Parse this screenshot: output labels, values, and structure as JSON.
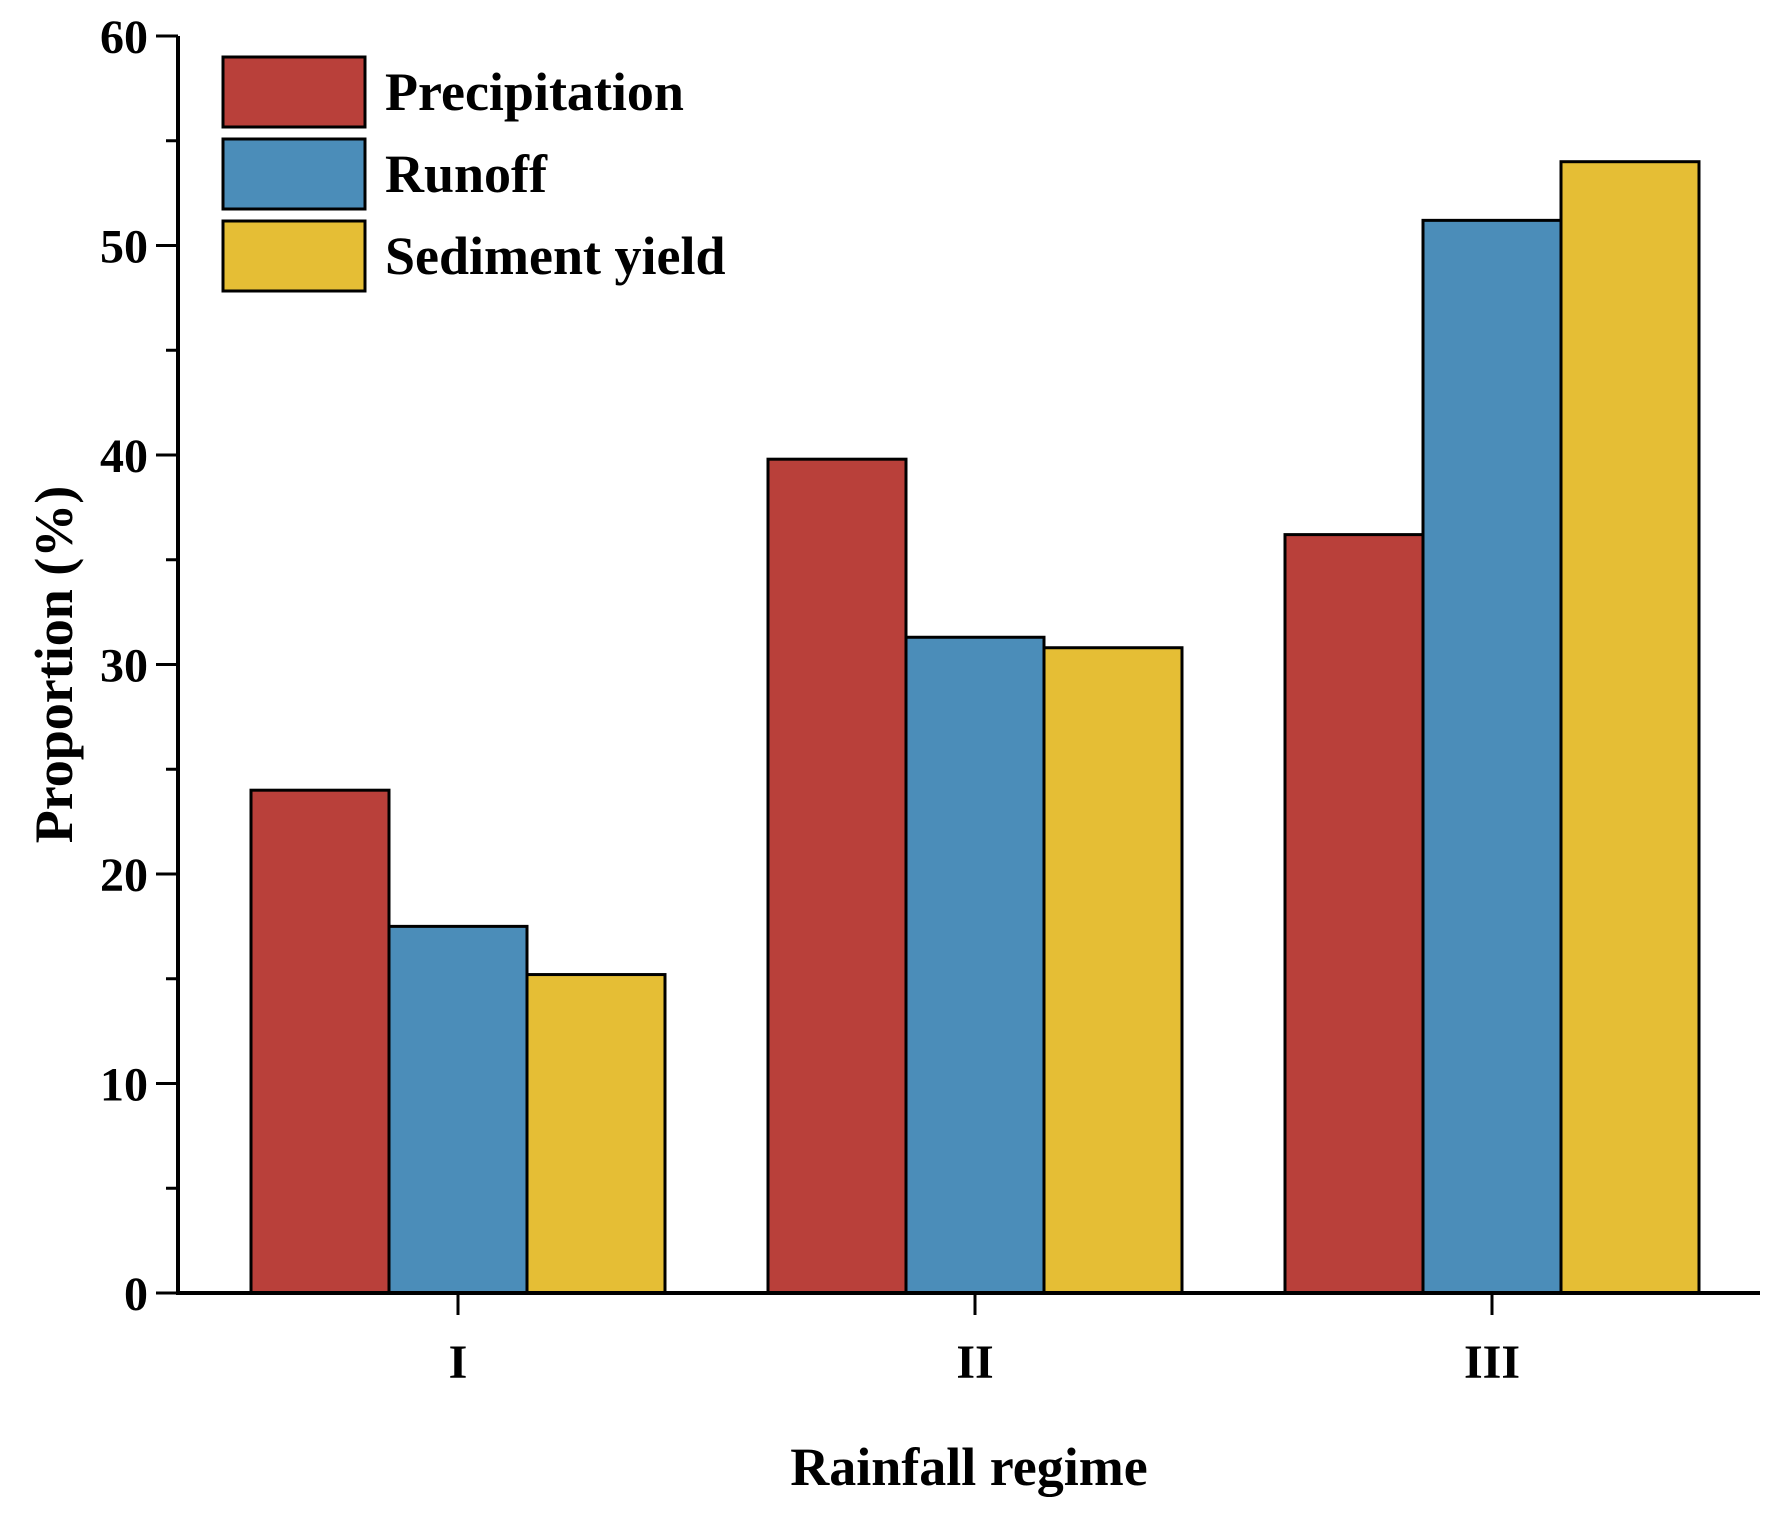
{
  "chart_data": {
    "type": "bar",
    "title": "",
    "xlabel": "Rainfall regime",
    "ylabel": "Proportion (%)",
    "ylim": [
      0,
      60
    ],
    "y_major_ticks": [
      0,
      10,
      20,
      30,
      40,
      50,
      60
    ],
    "y_minor_step": 5,
    "categories": [
      "I",
      "II",
      "III"
    ],
    "series": [
      {
        "name": "Precipitation",
        "values": [
          24.0,
          39.8,
          36.2
        ],
        "color": "#B9403A"
      },
      {
        "name": "Runoff",
        "values": [
          17.5,
          31.3,
          51.2
        ],
        "color": "#4B8DB9"
      },
      {
        "name": "Sediment yield",
        "values": [
          15.2,
          30.8,
          54.0
        ],
        "color": "#E5BE35"
      }
    ],
    "legend": {
      "position": "top-left"
    },
    "grid": false
  }
}
